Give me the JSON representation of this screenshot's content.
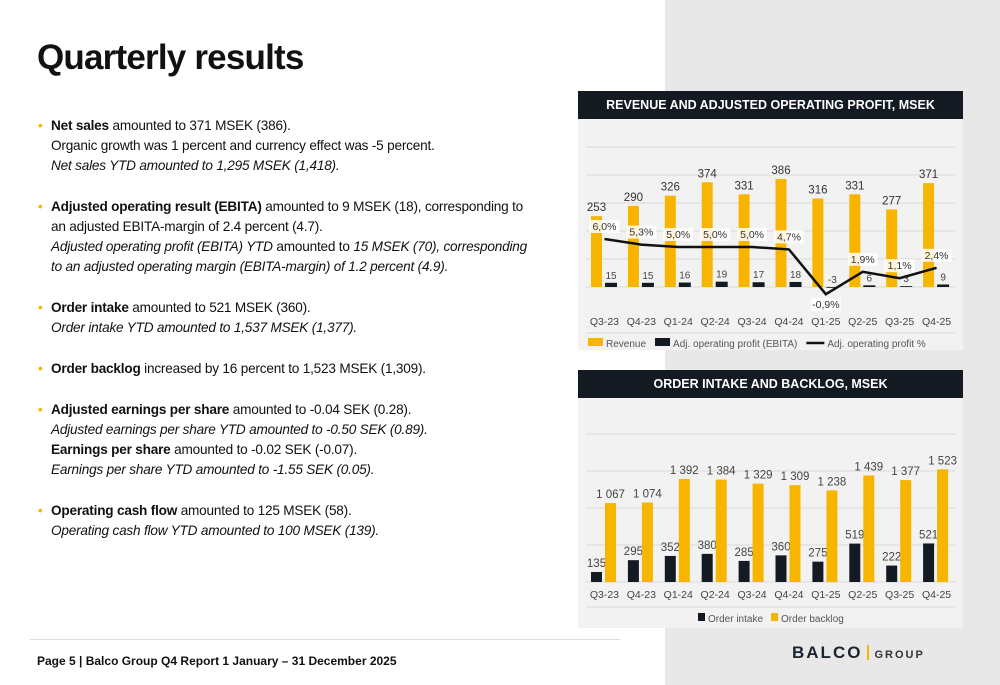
{
  "title": "Quarterly results",
  "bullets": [
    {
      "lines": [
        [
          {
            "t": "Net sales",
            "s": "b"
          },
          {
            "t": " amounted to 371 MSEK (386)."
          }
        ],
        [
          {
            "t": "Organic growth was 1 percent and currency effect was -5 percent."
          }
        ],
        [
          {
            "t": "Net sales YTD amounted to 1,295 MSEK (1,418).",
            "s": "i"
          }
        ]
      ]
    },
    {
      "lines": [
        [
          {
            "t": "Adjusted operating result (EBITA)",
            "s": "b"
          },
          {
            "t": " amounted to 9 MSEK (18), corresponding to"
          }
        ],
        [
          {
            "t": "an adjusted EBITA-margin of 2.4 percent (4.7)."
          }
        ],
        [
          {
            "t": "Adjusted operating profit (EBITA) YTD",
            "s": "i"
          },
          {
            "t": " amounted to "
          },
          {
            "t": "15 MSEK (70), corresponding",
            "s": "i"
          }
        ],
        [
          {
            "t": "to an adjusted operating margin (EBITA-margin) of 1.2 percent (4.9).",
            "s": "i"
          }
        ]
      ]
    },
    {
      "lines": [
        [
          {
            "t": "Order intake",
            "s": "b"
          },
          {
            "t": " amounted to 521 MSEK (360)."
          }
        ],
        [
          {
            "t": "Order intake YTD amounted to 1,537 MSEK (1,377).",
            "s": "i"
          }
        ]
      ]
    },
    {
      "lines": [
        [
          {
            "t": "Order backlog",
            "s": "b"
          },
          {
            "t": " increased by 16 percent to 1,523 MSEK (1,309)."
          }
        ]
      ]
    },
    {
      "lines": [
        [
          {
            "t": "Adjusted earnings per share",
            "s": "b"
          },
          {
            "t": " amounted to -0.04 SEK (0.28)."
          }
        ],
        [
          {
            "t": "Adjusted earnings per share YTD amounted to -0.50 SEK (0.89).",
            "s": "i"
          }
        ],
        [
          {
            "t": "Earnings per share",
            "s": "b"
          },
          {
            "t": " amounted to -0.02 SEK (-0.07)."
          }
        ],
        [
          {
            "t": "Earnings per share YTD amounted to -1.55 SEK (0.05).",
            "s": "i"
          }
        ]
      ]
    },
    {
      "lines": [
        [
          {
            "t": "Operating cash flow",
            "s": "b"
          },
          {
            "t": " amounted to 125 MSEK (58)."
          }
        ],
        [
          {
            "t": "Operating cash flow YTD amounted to 100 MSEK (139).",
            "s": "i"
          }
        ]
      ]
    }
  ],
  "footer": "Page 5 | Balco Group Q4 Report 1 January – 31 December 2025",
  "logo": {
    "name": "BALCO",
    "suffix": "GROUP"
  },
  "colors": {
    "accent": "#f7b500",
    "dark": "#141a22"
  },
  "chart_data": [
    {
      "type": "bar",
      "title": "REVENUE AND ADJUSTED OPERATING PROFIT, MSEK",
      "categories": [
        "Q3-23",
        "Q4-23",
        "Q1-24",
        "Q2-24",
        "Q3-24",
        "Q4-24",
        "Q1-25",
        "Q2-25",
        "Q3-25",
        "Q4-25"
      ],
      "ylim": [
        0,
        500
      ],
      "grid": true,
      "legend": "bottom",
      "series": [
        {
          "name": "Revenue",
          "kind": "bar",
          "color": "#f7b500",
          "values": [
            253,
            290,
            326,
            374,
            331,
            386,
            316,
            331,
            277,
            371
          ],
          "labels": [
            "253",
            "290",
            "326",
            "374",
            "331",
            "386",
            "316",
            "331",
            "277",
            "371"
          ]
        },
        {
          "name": "Adj. operating profit (EBITA)",
          "kind": "bar",
          "color": "#141a22",
          "values": [
            15,
            15,
            16,
            19,
            17,
            18,
            -3,
            6,
            3,
            9
          ],
          "labels": [
            "15",
            "15",
            "16",
            "19",
            "17",
            "18",
            "-3",
            "6",
            "3",
            "9"
          ]
        },
        {
          "name": "Adj. operating profit %",
          "kind": "line",
          "axis": "secondary",
          "color": "#111111",
          "values": [
            6.0,
            5.3,
            5.0,
            5.0,
            5.0,
            4.7,
            -0.9,
            1.9,
            1.1,
            2.4
          ],
          "labels": [
            "6,0%",
            "5,3%",
            "5,0%",
            "5,0%",
            "5,0%",
            "4,7%",
            "-0,9%",
            "1,9%",
            "1,1%",
            "2,4%"
          ]
        }
      ]
    },
    {
      "type": "bar",
      "title": "ORDER INTAKE AND BACKLOG, MSEK",
      "categories": [
        "Q3-23",
        "Q4-23",
        "Q1-24",
        "Q2-24",
        "Q3-24",
        "Q4-24",
        "Q1-25",
        "Q2-25",
        "Q3-25",
        "Q4-25"
      ],
      "ylim": [
        0,
        2000
      ],
      "grid": true,
      "legend": "bottom",
      "series": [
        {
          "name": "Order intake",
          "kind": "bar",
          "color": "#141a22",
          "values": [
            135,
            295,
            352,
            380,
            285,
            360,
            275,
            519,
            222,
            521
          ],
          "labels": [
            "135",
            "295",
            "352",
            "380",
            "285",
            "360",
            "275",
            "519",
            "222",
            "521"
          ]
        },
        {
          "name": "Order backlog",
          "kind": "bar",
          "color": "#f7b500",
          "values": [
            1067,
            1074,
            1392,
            1384,
            1329,
            1309,
            1238,
            1439,
            1377,
            1523
          ],
          "labels": [
            "1 067",
            "1 074",
            "1 392",
            "1 384",
            "1 329",
            "1 309",
            "1 238",
            "1 439",
            "1 377",
            "1 523"
          ]
        }
      ]
    }
  ]
}
